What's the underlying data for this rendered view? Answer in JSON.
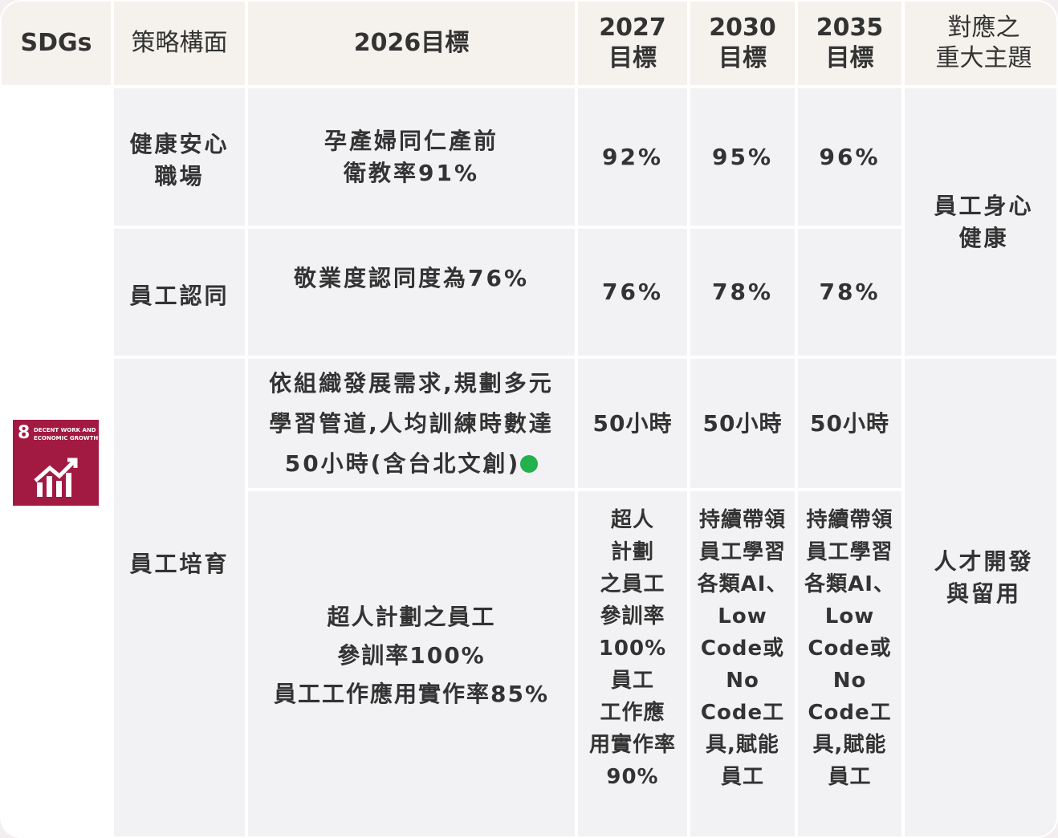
{
  "table": {
    "header": [
      "SDGs",
      "策略構面",
      "2026目標",
      "2027\n目標",
      "2030\n目標",
      "2035\n目標",
      "對應之\n重大主題"
    ],
    "sdg": {
      "number": "8",
      "label": "DECENT WORK AND\nECONOMIC GROWTH"
    },
    "dimensions": [
      "健康安心\n職場",
      "員工認同",
      "員工培育"
    ],
    "rows": [
      [
        "孕產婦同仁產前\n衛教率91%",
        "92%",
        "95%",
        "96%"
      ],
      [
        "敬業度認同度為76%",
        "76%",
        "78%",
        "78%"
      ],
      [
        "依組織發展需求,規劃多元\n學習管道,人均訓練時數達\n50小時(含台北文創)",
        "50小時",
        "50小時",
        "50小時"
      ],
      [
        "超人計劃之員工\n參訓率100%\n員工工作應用實作率85%",
        "超人\n計劃\n之員工\n參訓率\n100%\n員工\n工作應\n用實作率\n90%",
        "持續帶領\n員工學習\n各類AI、\nLow\nCode或\nNo\nCode工\n具,賦能\n員工",
        "持續帶領\n員工學習\n各類AI、\nLow\nCode或\nNo\nCode工\n具,賦能\n員工"
      ]
    ],
    "topics": [
      "員工身心\n健康",
      "人才開發\n與留用"
    ]
  }
}
